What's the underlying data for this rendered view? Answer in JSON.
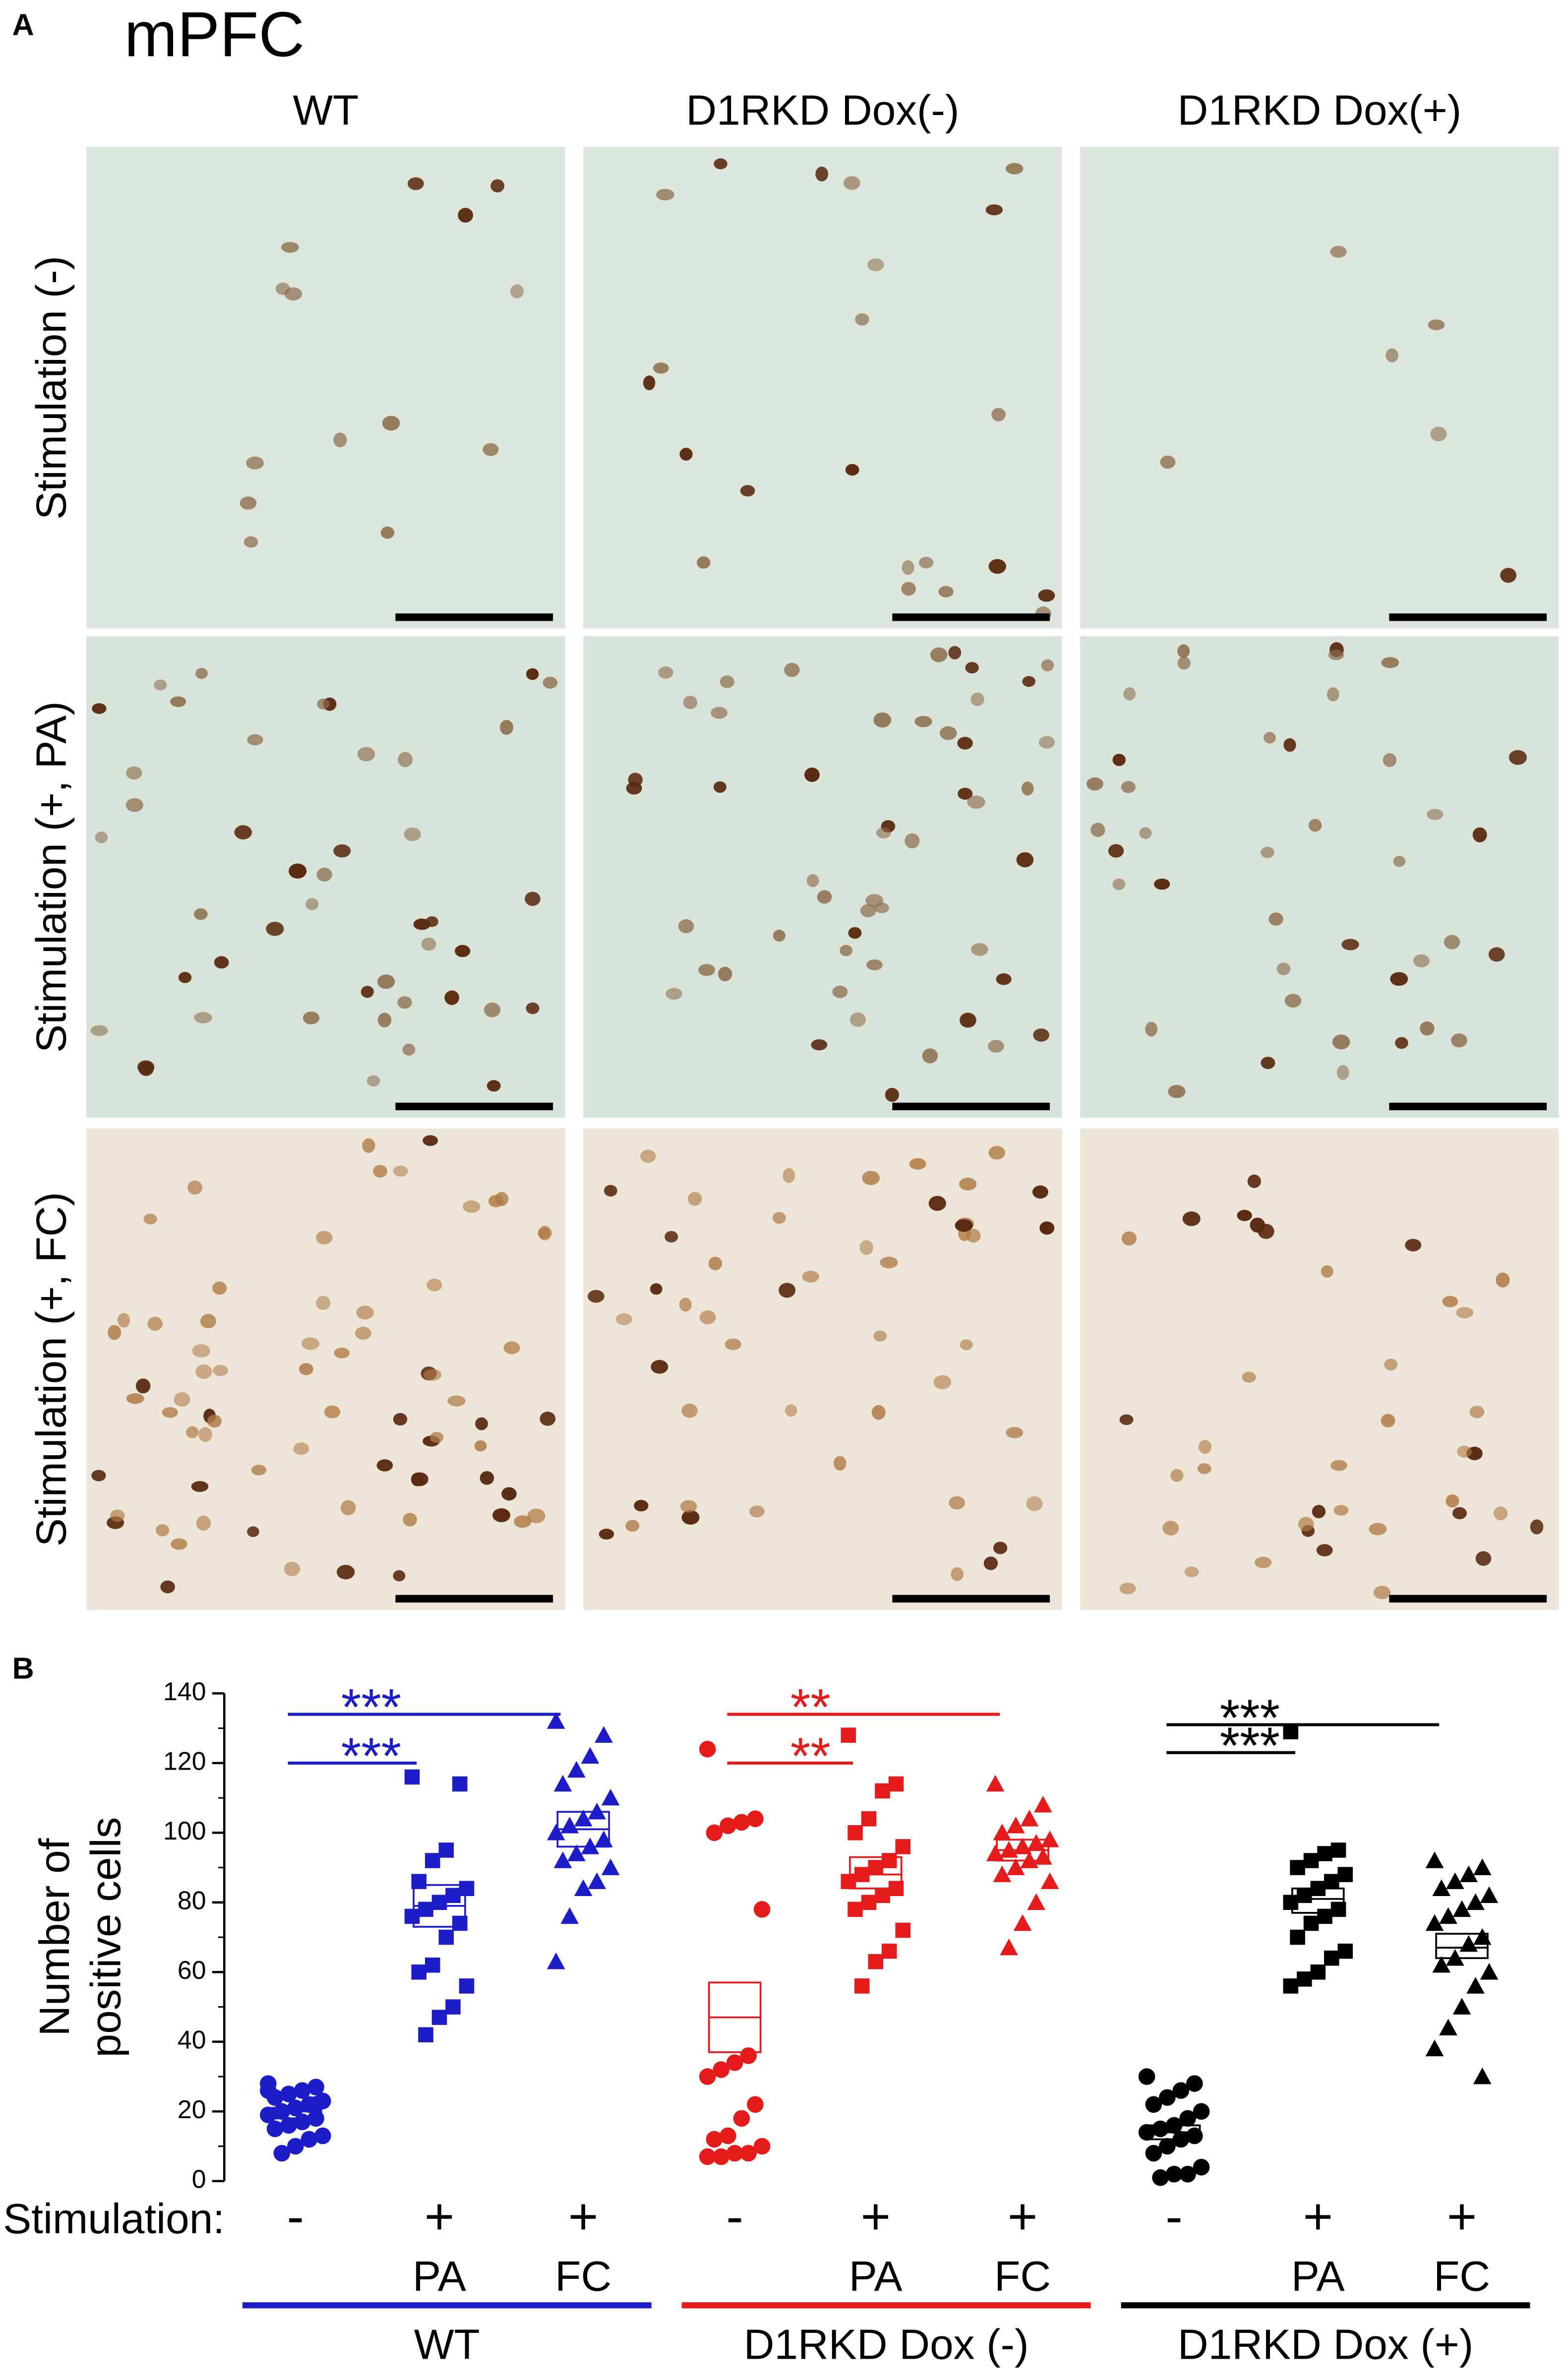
{
  "panel_labels": [
    "A",
    "B"
  ],
  "micrographs": {
    "title": "mPFC",
    "columns": [
      "WT",
      "D1RKD Dox(-)",
      "D1RKD Dox(+)"
    ],
    "rows": [
      "Stimulation (-)",
      "Stimulation (+, PA)",
      "Stimulation (+, FC)"
    ]
  },
  "chart_data": {
    "type": "scatter",
    "y_label": [
      "Number of",
      "positive cells"
    ],
    "x_label": "Stimulation:",
    "categories": [
      "-",
      "+",
      "+",
      "-",
      "+",
      "+",
      "-",
      "+",
      "+"
    ],
    "sublabels": [
      null,
      "PA",
      "FC",
      null,
      "PA",
      "FC",
      null,
      "PA",
      "FC"
    ],
    "genotypes": [
      {
        "name": "WT",
        "color": "#1c1cc8",
        "from": 0,
        "to": 2
      },
      {
        "name": "D1RKD Dox (-)",
        "color": "#e51b1b",
        "from": 3,
        "to": 5
      },
      {
        "name": "D1RKD Dox (+)",
        "color": "#000000",
        "from": 6,
        "to": 8
      }
    ],
    "ylim": [
      0,
      140
    ],
    "yticks": [
      0,
      20,
      40,
      60,
      80,
      100,
      120,
      140
    ],
    "minor_ytick_step": 10,
    "series": [
      {
        "color": "#1c1cc8",
        "marker": "circle",
        "values": [
          28,
          27,
          26,
          25,
          24,
          23,
          22,
          21,
          20,
          19,
          18,
          17,
          16,
          15,
          13,
          12,
          10,
          8,
          26,
          22
        ],
        "box": [
          18,
          20,
          21
        ]
      },
      {
        "color": "#1c1cc8",
        "marker": "square",
        "values": [
          116,
          114,
          95,
          92,
          86,
          84,
          82,
          80,
          78,
          76,
          74,
          70,
          62,
          60,
          56,
          50,
          47,
          42
        ],
        "box": [
          73,
          79,
          85
        ]
      },
      {
        "color": "#1c1cc8",
        "marker": "triangle",
        "values": [
          132,
          128,
          122,
          118,
          114,
          110,
          106,
          104,
          102,
          100,
          98,
          96,
          94,
          92,
          90,
          86,
          84,
          76,
          63
        ],
        "box": [
          96,
          101,
          106
        ]
      },
      {
        "color": "#e51b1b",
        "marker": "circle",
        "values": [
          124,
          104,
          103,
          102,
          100,
          78,
          36,
          34,
          32,
          30,
          22,
          18,
          13,
          12,
          10,
          8,
          8,
          7,
          7
        ],
        "box": [
          37,
          47,
          57
        ]
      },
      {
        "color": "#e51b1b",
        "marker": "square",
        "values": [
          128,
          114,
          112,
          104,
          100,
          96,
          92,
          90,
          88,
          86,
          84,
          82,
          80,
          78,
          72,
          66,
          63,
          56
        ],
        "box": [
          84,
          88,
          93
        ]
      },
      {
        "color": "#e51b1b",
        "marker": "triangle",
        "values": [
          114,
          108,
          104,
          102,
          100,
          98,
          97,
          96,
          95,
          94,
          93,
          92,
          90,
          88,
          86,
          80,
          74,
          67
        ],
        "box": [
          92,
          95,
          98
        ]
      },
      {
        "color": "#000000",
        "marker": "circle",
        "values": [
          30,
          28,
          26,
          24,
          22,
          20,
          18,
          16,
          15,
          14,
          13,
          12,
          10,
          8,
          4,
          2,
          2,
          1
        ],
        "box": [
          12,
          14,
          16
        ]
      },
      {
        "color": "#000000",
        "marker": "square",
        "values": [
          129,
          95,
          94,
          92,
          90,
          88,
          86,
          84,
          82,
          80,
          78,
          76,
          74,
          70,
          66,
          64,
          60,
          58,
          56
        ],
        "box": [
          77,
          81,
          84
        ]
      },
      {
        "color": "#000000",
        "marker": "triangle",
        "values": [
          92,
          90,
          88,
          86,
          84,
          82,
          80,
          78,
          76,
          74,
          70,
          68,
          64,
          62,
          60,
          56,
          50,
          44,
          38,
          30
        ],
        "box": [
          64,
          67,
          71
        ]
      }
    ],
    "annotations": [
      {
        "text": "***",
        "from": 0,
        "to": 1,
        "y": 120,
        "color": "#1c1cc8"
      },
      {
        "text": "***",
        "from": 0,
        "to": 2,
        "y": 134,
        "color": "#1c1cc8"
      },
      {
        "text": "**",
        "from": 3,
        "to": 4,
        "y": 120,
        "color": "#e51b1b"
      },
      {
        "text": "**",
        "from": 3,
        "to": 5,
        "y": 134,
        "color": "#e51b1b"
      },
      {
        "text": "***",
        "from": 6,
        "to": 7,
        "y": 123,
        "color": "#000000"
      },
      {
        "text": "***",
        "from": 6,
        "to": 8,
        "y": 131,
        "color": "#000000"
      }
    ]
  }
}
